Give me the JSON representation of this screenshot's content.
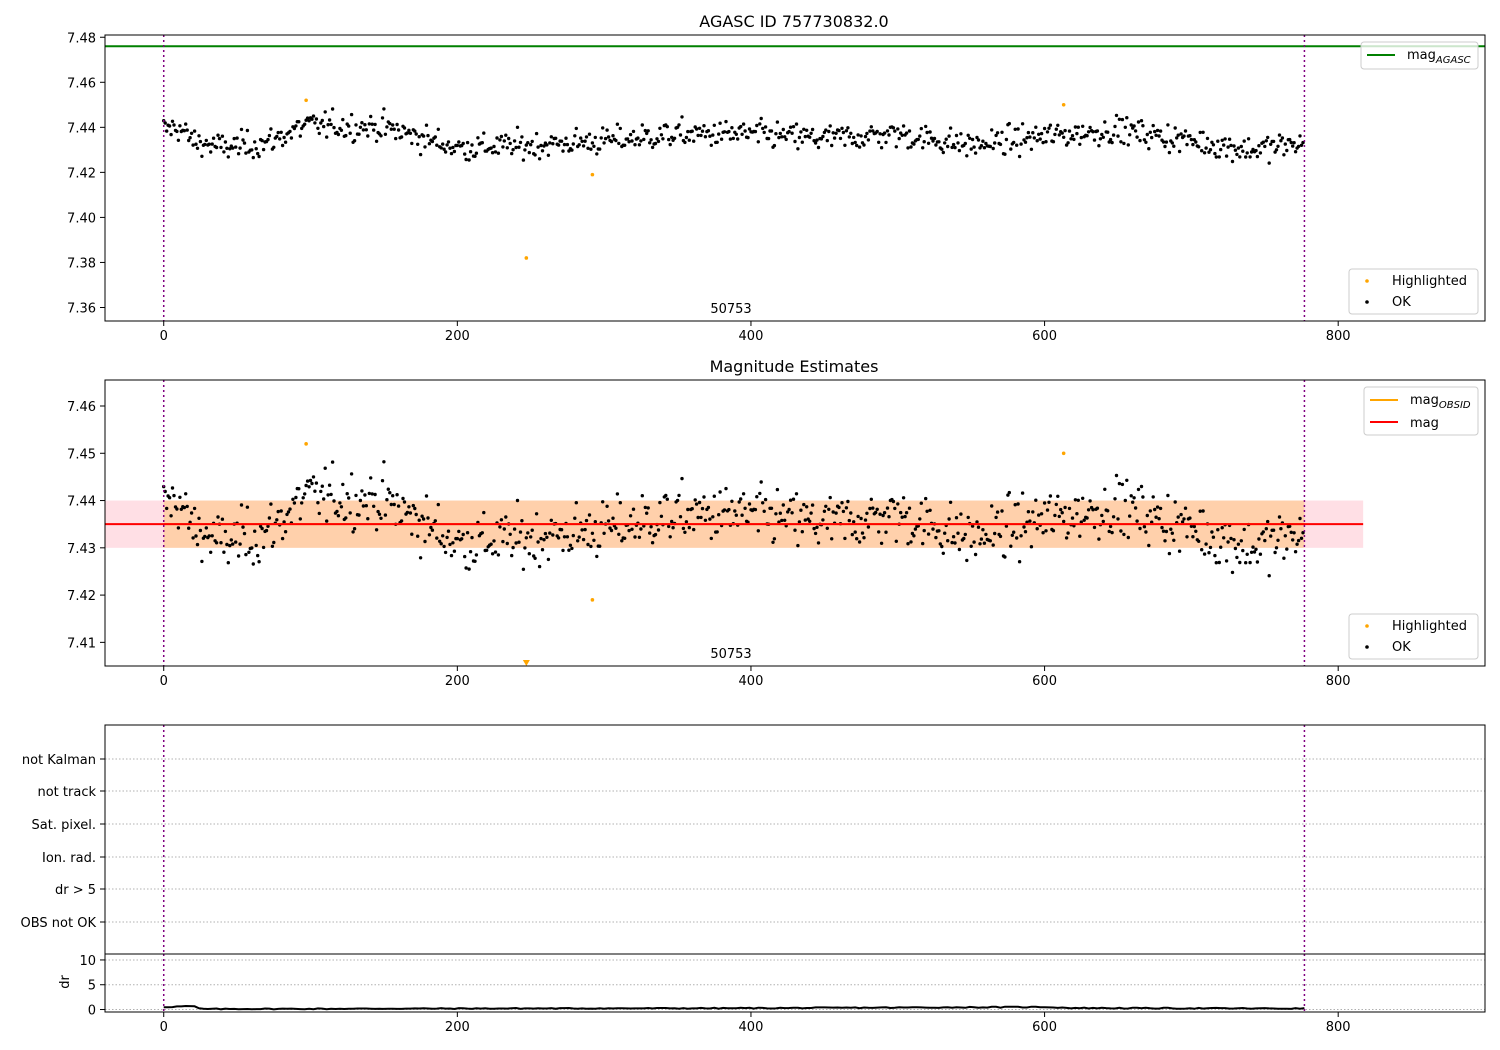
{
  "chart_data": [
    {
      "type": "scatter",
      "title": "AGASC ID 757730832.0",
      "xlim": [
        -40,
        900
      ],
      "ylim": [
        7.354,
        7.481
      ],
      "x_ticks": [
        0,
        200,
        400,
        600,
        800
      ],
      "y_ticks": [
        7.36,
        7.38,
        7.4,
        7.42,
        7.44,
        7.46,
        7.48
      ],
      "y_tick_labels": [
        "7.36",
        "7.38",
        "7.40",
        "7.42",
        "7.44",
        "7.46",
        "7.48"
      ],
      "obsid_label": "50753",
      "obsid_label_x": 387,
      "mag_agasc": 7.476,
      "obs_bounds": [
        0,
        777
      ],
      "legend_lines": [
        {
          "name": "mag",
          "sub": "AGASC",
          "color": "#008000"
        }
      ],
      "legend_points": [
        {
          "name": "Highlighted",
          "color": "#ffa500"
        },
        {
          "name": "OK",
          "color": "#000000"
        }
      ],
      "highlighted": [
        [
          97,
          7.452
        ],
        [
          247,
          7.382
        ],
        [
          292,
          7.419
        ],
        [
          613,
          7.45
        ]
      ],
      "series_ok": {
        "n": 777,
        "mean": 7.435,
        "spread": 0.0042,
        "trend": [
          [
            0,
            7.439
          ],
          [
            10,
            7.44
          ],
          [
            20,
            7.434
          ],
          [
            40,
            7.431
          ],
          [
            70,
            7.433
          ],
          [
            97,
            7.441
          ],
          [
            150,
            7.44
          ],
          [
            200,
            7.431
          ],
          [
            250,
            7.432
          ],
          [
            300,
            7.434
          ],
          [
            350,
            7.437
          ],
          [
            400,
            7.437
          ],
          [
            450,
            7.435
          ],
          [
            500,
            7.437
          ],
          [
            550,
            7.432
          ],
          [
            600,
            7.436
          ],
          [
            650,
            7.439
          ],
          [
            700,
            7.434
          ],
          [
            740,
            7.43
          ],
          [
            777,
            7.433
          ]
        ]
      }
    },
    {
      "type": "scatter",
      "title": "Magnitude Estimates",
      "xlim": [
        -40,
        900
      ],
      "ylim": [
        7.405,
        7.4655
      ],
      "x_ticks": [
        0,
        200,
        400,
        600,
        800
      ],
      "y_ticks": [
        7.41,
        7.42,
        7.43,
        7.44,
        7.45,
        7.46
      ],
      "y_tick_labels": [
        "7.41",
        "7.42",
        "7.43",
        "7.44",
        "7.45",
        "7.46"
      ],
      "obsid_label": "50753",
      "obsid_label_x": 387,
      "mag": 7.435,
      "mag_obsid": 7.435,
      "band_mag": [
        7.43,
        7.44
      ],
      "band_obsid": [
        7.43,
        7.44
      ],
      "band_xrange": [
        -40,
        817
      ],
      "obs_bounds": [
        0,
        777
      ],
      "legend_lines": [
        {
          "name": "mag",
          "sub": "OBSID",
          "color": "#ffa500"
        },
        {
          "name": "mag",
          "sub": "",
          "color": "#ff0000"
        }
      ],
      "legend_points": [
        {
          "name": "Highlighted",
          "color": "#ffa500"
        },
        {
          "name": "OK",
          "color": "#000000"
        }
      ],
      "highlighted": [
        [
          97,
          7.452
        ],
        [
          292,
          7.419
        ],
        [
          613,
          7.45
        ]
      ],
      "clipped_marker": [
        247,
        7.405
      ]
    },
    {
      "type": "scatter",
      "title": "",
      "xlim": [
        -40,
        900
      ],
      "categories": [
        "not Kalman",
        "not track",
        "Sat. pixel.",
        "Ion. rad.",
        "dr > 5",
        "OBS not OK"
      ],
      "obs_bounds": [
        0,
        777
      ]
    },
    {
      "type": "line",
      "title": "",
      "ylabel": "dr",
      "xlim": [
        -40,
        900
      ],
      "ylim": [
        -0.5,
        11.2
      ],
      "x_ticks": [
        0,
        200,
        400,
        600,
        800
      ],
      "y_ticks": [
        0,
        5,
        10
      ],
      "y_tick_labels": [
        "0",
        "5",
        "10"
      ],
      "obs_bounds": [
        0,
        777
      ],
      "dr_profile": [
        [
          0,
          0.5
        ],
        [
          20,
          0.7
        ],
        [
          25,
          0.1
        ],
        [
          200,
          0.2
        ],
        [
          380,
          0.25
        ],
        [
          600,
          0.5
        ],
        [
          620,
          0.3
        ],
        [
          777,
          0.2
        ]
      ]
    }
  ]
}
